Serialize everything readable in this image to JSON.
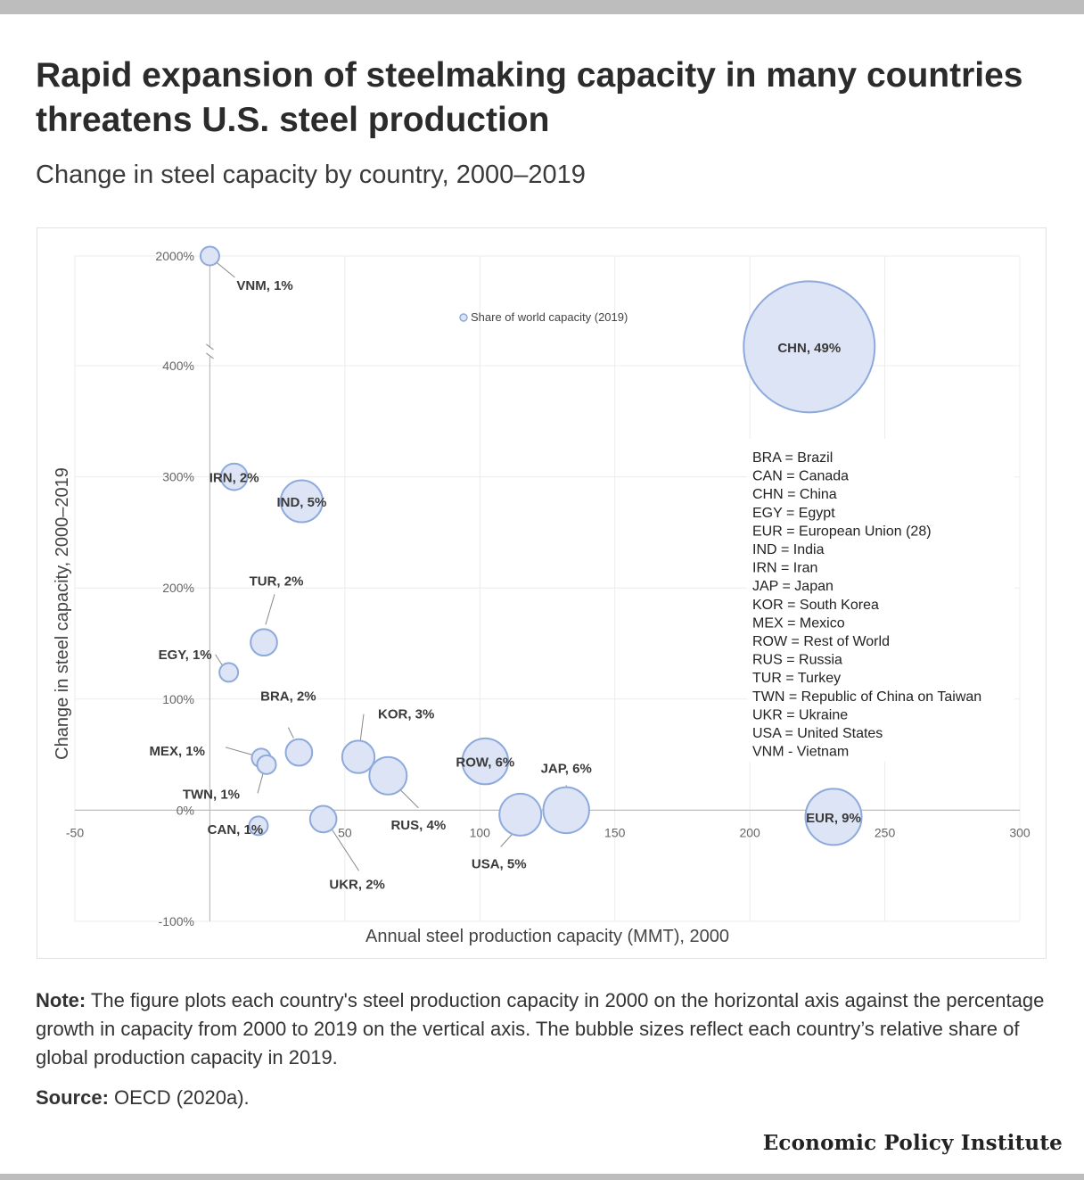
{
  "title": "Rapid expansion of steelmaking capacity in many countries threatens U.S. steel production",
  "subtitle": "Change in steel capacity by country, 2000–2019",
  "note": {
    "label": "Note:",
    "text": " The figure plots each country's steel production capacity in 2000 on the horizontal axis against the percentage growth in capacity from 2000 to 2019 on the vertical axis. The bubble sizes reflect each country’s relative share of global production capacity in 2019."
  },
  "source": {
    "label": "Source:",
    "text": " OECD (2020a)."
  },
  "brand": "Economic Policy Institute",
  "colors": {
    "bubble_fill": "#dce4f5",
    "bubble_stroke": "#8eaadb",
    "grid": "#ececec",
    "axis_text": "#666666",
    "label_text": "#3a3a3a",
    "leader": "#888888"
  },
  "chart_data": {
    "type": "scatter",
    "bubble": true,
    "xlabel": "Annual steel production capacity (MMT), 2000",
    "ylabel": "Change in steel capacity, 2000–2019",
    "xlim": [
      -50,
      300
    ],
    "ylim": [
      -100,
      400
    ],
    "x_ticks": [
      -50,
      50,
      100,
      150,
      200,
      250,
      300
    ],
    "x_tick_labels": [
      "-50",
      "50",
      "100",
      "150",
      "200",
      "250",
      "300"
    ],
    "y_ticks": [
      -100,
      0,
      100,
      200,
      300,
      400
    ],
    "y_tick_labels": [
      "-100%",
      "0%",
      "100%",
      "200%",
      "300%",
      "400%"
    ],
    "y_break": {
      "value": 2000,
      "label": "2000%"
    },
    "grid": true,
    "size_legend_label": "Share of world capacity (2019)",
    "points": [
      {
        "code": "VNM",
        "label": "VNM, 1%",
        "x": 0,
        "y": 2000,
        "share": 1
      },
      {
        "code": "CHN",
        "label": "CHN, 49%",
        "x": 222,
        "y": 417,
        "share": 49
      },
      {
        "code": "IRN",
        "label": "IRN, 2%",
        "x": 9,
        "y": 300,
        "share": 2
      },
      {
        "code": "IND",
        "label": "IND, 5%",
        "x": 34,
        "y": 278,
        "share": 5
      },
      {
        "code": "TUR",
        "label": "TUR, 2%",
        "x": 20,
        "y": 151,
        "share": 2
      },
      {
        "code": "EGY",
        "label": "EGY, 1%",
        "x": 7,
        "y": 124,
        "share": 1
      },
      {
        "code": "BRA",
        "label": "BRA, 2%",
        "x": 33,
        "y": 52,
        "share": 2
      },
      {
        "code": "MEX",
        "label": "MEX, 1%",
        "x": 19,
        "y": 47,
        "share": 1
      },
      {
        "code": "TWN",
        "label": "TWN, 1%",
        "x": 21,
        "y": 41,
        "share": 1
      },
      {
        "code": "KOR",
        "label": "KOR, 3%",
        "x": 55,
        "y": 48,
        "share": 3
      },
      {
        "code": "RUS",
        "label": "RUS, 4%",
        "x": 66,
        "y": 31,
        "share": 4
      },
      {
        "code": "ROW",
        "label": "ROW, 6%",
        "x": 102,
        "y": 44,
        "share": 6
      },
      {
        "code": "JAP",
        "label": "JAP, 6%",
        "x": 132,
        "y": 0,
        "share": 6
      },
      {
        "code": "USA",
        "label": "USA, 5%",
        "x": 115,
        "y": -4,
        "share": 5
      },
      {
        "code": "EUR",
        "label": "EUR, 9%",
        "x": 231,
        "y": -6,
        "share": 9
      },
      {
        "code": "CAN",
        "label": "CAN, 1%",
        "x": 18,
        "y": -14,
        "share": 1
      },
      {
        "code": "UKR",
        "label": "UKR, 2%",
        "x": 42,
        "y": -8,
        "share": 2
      }
    ],
    "abbreviations": [
      "BRA = Brazil",
      "CAN = Canada",
      "CHN = China",
      "EGY = Egypt",
      "EUR = European Union (28)",
      "IND = India",
      "IRN = Iran",
      "JAP = Japan",
      "KOR = South Korea",
      "MEX = Mexico",
      "ROW = Rest of World",
      "RUS = Russia",
      "TUR = Turkey",
      "TWN = Republic of China on Taiwan",
      "UKR = Ukraine",
      "USA = United States",
      "VNM - Vietnam"
    ]
  }
}
